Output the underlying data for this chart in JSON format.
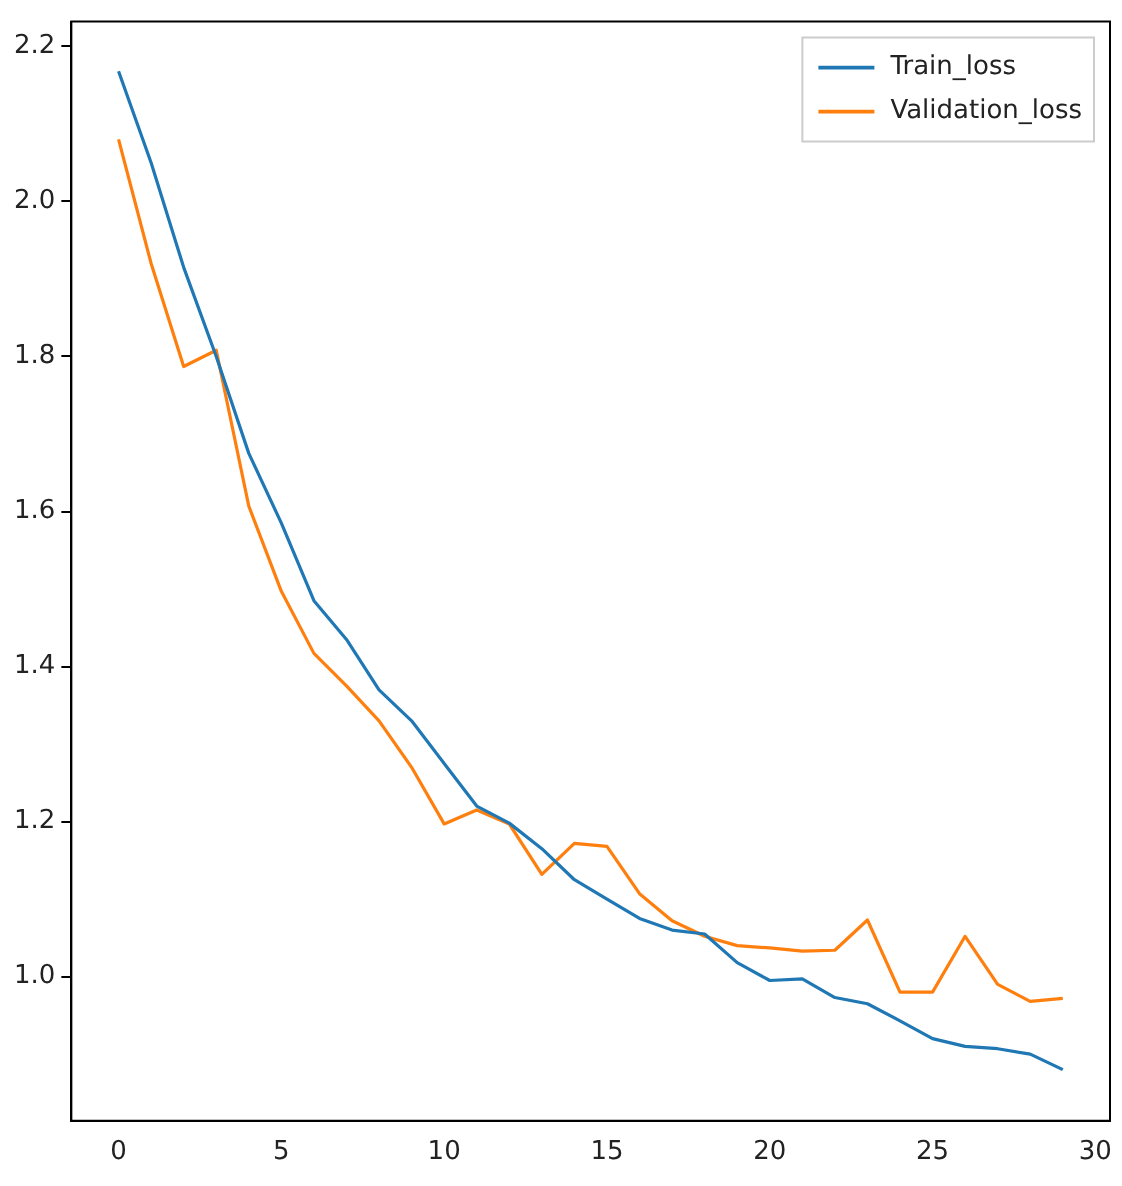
{
  "chart_data": {
    "type": "line",
    "x": [
      0,
      1,
      2,
      3,
      4,
      5,
      6,
      7,
      8,
      9,
      10,
      11,
      12,
      13,
      14,
      15,
      16,
      17,
      18,
      19,
      20,
      21,
      22,
      23,
      24,
      25,
      26,
      27,
      28,
      29
    ],
    "series": [
      {
        "name": "Train_loss",
        "color": "#1f77b4",
        "values": [
          2.168,
          2.05,
          1.915,
          1.8,
          1.675,
          1.585,
          1.485,
          1.435,
          1.37,
          1.33,
          1.275,
          1.22,
          1.198,
          1.165,
          1.125,
          1.1,
          1.075,
          1.06,
          1.055,
          1.018,
          0.995,
          0.997,
          0.973,
          0.965,
          0.943,
          0.92,
          0.91,
          0.907,
          0.9,
          0.88
        ]
      },
      {
        "name": "Validation_loss",
        "color": "#ff7f0e",
        "values": [
          2.08,
          1.92,
          1.787,
          1.808,
          1.607,
          1.497,
          1.417,
          1.375,
          1.33,
          1.27,
          1.197,
          1.215,
          1.197,
          1.132,
          1.172,
          1.168,
          1.107,
          1.072,
          1.052,
          1.04,
          1.037,
          1.033,
          1.034,
          1.073,
          0.98,
          0.98,
          1.052,
          0.99,
          0.968,
          0.972
        ]
      }
    ],
    "xlim": [
      -1.45,
      30.45
    ],
    "xticks": [
      0,
      5,
      10,
      15,
      20,
      25,
      30
    ],
    "ylim": [
      0.814,
      2.232
    ],
    "yticks": [
      {
        "value": 1.0,
        "label": "1.0"
      },
      {
        "value": 1.2,
        "label": "1.2"
      },
      {
        "value": 1.4,
        "label": "1.4"
      },
      {
        "value": 1.6,
        "label": "1.6"
      },
      {
        "value": 1.8,
        "label": "1.8"
      },
      {
        "value": 2.0,
        "label": "2.0"
      },
      {
        "value": 2.2,
        "label": "2.2"
      }
    ],
    "grid": false,
    "legend": "top right",
    "marker": "none",
    "line_style": "solid"
  }
}
